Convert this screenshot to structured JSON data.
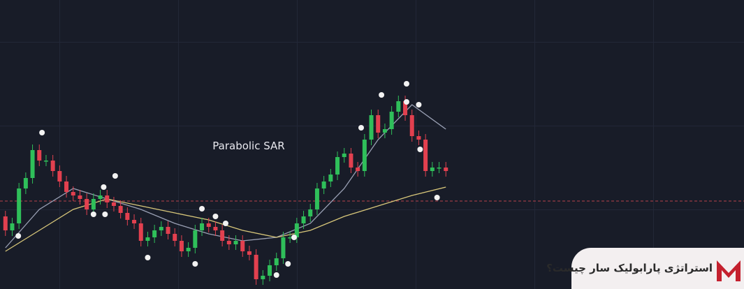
{
  "chart_data": {
    "type": "candlestick",
    "annotation": "Parabolic SAR",
    "xlim": [
      -0.8,
      109
    ],
    "ylim": [
      0,
      414
    ],
    "up_color": "#2fbf5a",
    "down_color": "#e2404f",
    "open": [
      104,
      84,
      94,
      144,
      159,
      199,
      184,
      184,
      169,
      154,
      139,
      134,
      129,
      114,
      129,
      134,
      124,
      119,
      109,
      99,
      94,
      69,
      74,
      84,
      89,
      79,
      69,
      54,
      59,
      84,
      94,
      89,
      84,
      69,
      64,
      69,
      54,
      49,
      14,
      19,
      34,
      44,
      74,
      74,
      94,
      104,
      114,
      144,
      154,
      164,
      189,
      194,
      174,
      169,
      214,
      249,
      224,
      229,
      254,
      269,
      249,
      219,
      214,
      169,
      174,
      174
    ],
    "high": [
      112,
      102,
      152,
      167,
      207,
      207,
      192,
      192,
      177,
      162,
      147,
      142,
      137,
      137,
      142,
      142,
      132,
      127,
      117,
      107,
      102,
      82,
      92,
      97,
      97,
      87,
      77,
      67,
      92,
      102,
      102,
      97,
      92,
      77,
      77,
      77,
      62,
      57,
      27,
      42,
      52,
      82,
      82,
      102,
      112,
      122,
      152,
      162,
      172,
      197,
      202,
      202,
      182,
      222,
      257,
      257,
      237,
      262,
      277,
      277,
      257,
      227,
      222,
      182,
      182,
      182
    ],
    "low": [
      76,
      76,
      86,
      136,
      151,
      176,
      176,
      161,
      146,
      131,
      126,
      121,
      106,
      106,
      121,
      116,
      111,
      101,
      91,
      86,
      61,
      61,
      66,
      76,
      71,
      61,
      46,
      46,
      51,
      76,
      81,
      76,
      61,
      56,
      56,
      46,
      41,
      6,
      6,
      11,
      26,
      36,
      66,
      66,
      86,
      96,
      106,
      136,
      146,
      156,
      181,
      166,
      161,
      161,
      206,
      216,
      216,
      221,
      246,
      241,
      211,
      206,
      161,
      161,
      166,
      161
    ],
    "close": [
      84,
      94,
      144,
      159,
      199,
      184,
      184,
      169,
      154,
      139,
      134,
      129,
      114,
      129,
      134,
      124,
      119,
      109,
      99,
      94,
      69,
      74,
      84,
      89,
      79,
      69,
      54,
      59,
      84,
      94,
      89,
      84,
      69,
      64,
      69,
      54,
      49,
      14,
      19,
      34,
      44,
      74,
      74,
      94,
      104,
      114,
      144,
      154,
      164,
      189,
      194,
      174,
      169,
      214,
      249,
      224,
      229,
      254,
      269,
      249,
      219,
      214,
      169,
      174,
      174,
      169
    ],
    "lines": [
      {
        "color": "#9aa0b4",
        "x": [
          0,
          5,
          10,
          15,
          20,
          25,
          30,
          35,
          40,
          45,
          50,
          55,
          60,
          65
        ],
        "values": [
          59,
          114,
          144,
          129,
          114,
          94,
          79,
          69,
          74,
          94,
          144,
          214,
          264,
          229
        ]
      },
      {
        "color": "#d8c77a",
        "x": [
          0,
          5,
          10,
          15,
          20,
          25,
          30,
          35,
          40,
          45,
          50,
          55,
          60,
          65
        ],
        "values": [
          54,
          84,
          114,
          129,
          119,
          109,
          99,
          84,
          74,
          84,
          104,
          119,
          134,
          146
        ]
      }
    ],
    "sar": {
      "color": "#f2f2f2",
      "x": [
        1.9,
        5.4,
        13,
        14.5,
        14.7,
        16.2,
        21,
        28,
        29,
        31,
        32.5,
        40,
        41.7,
        42.6,
        52.5,
        55.5,
        59.2,
        59.2,
        61,
        61.2,
        63.7
      ],
      "values": [
        76,
        224,
        107,
        146,
        107,
        162,
        45,
        36,
        115,
        104,
        94,
        20,
        36,
        74,
        231,
        278,
        294,
        268,
        264,
        200,
        131
      ]
    },
    "reference_line": {
      "value": 126,
      "color": "#b8424c"
    }
  },
  "banner": {
    "text": "استراتژی پارابولیک سار چیست؟"
  }
}
